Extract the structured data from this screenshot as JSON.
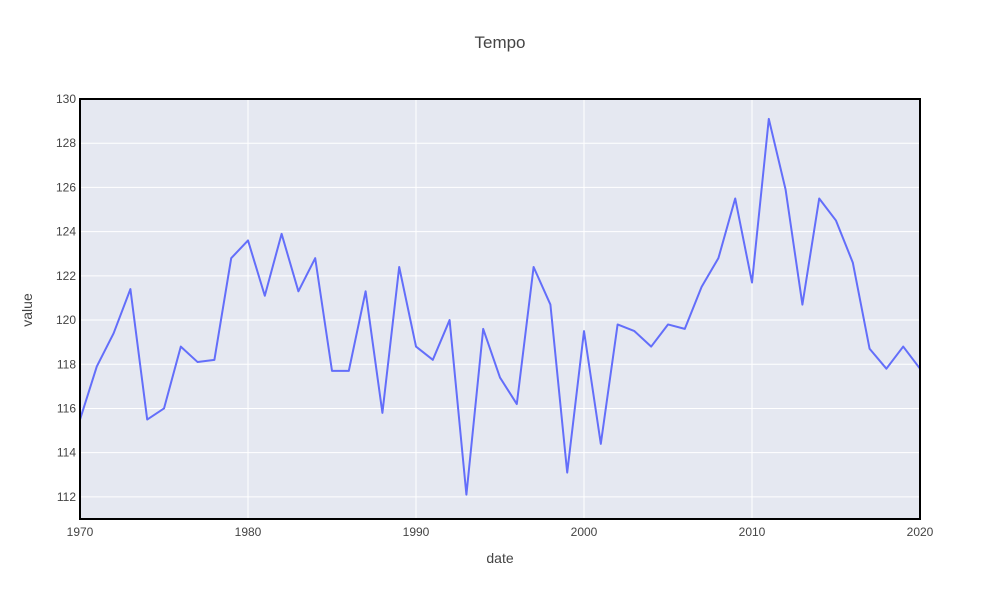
{
  "chart_data": {
    "type": "line",
    "title": "Tempo",
    "xlabel": "date",
    "ylabel": "value",
    "xlim": [
      1970,
      2020
    ],
    "ylim": [
      111,
      130
    ],
    "x_ticks": [
      "1970",
      "1980",
      "1990",
      "2000",
      "2010",
      "2020"
    ],
    "y_ticks": [
      "112",
      "114",
      "116",
      "118",
      "120",
      "122",
      "124",
      "126",
      "128",
      "130"
    ],
    "grid": true,
    "colors": {
      "line": "#636efa",
      "plot_bg": "#e5e8f1",
      "grid": "#ffffff",
      "frame": "#000000"
    },
    "series": [
      {
        "x": [
          1970,
          1971,
          1972,
          1973,
          1974,
          1975,
          1976,
          1977,
          1978,
          1979,
          1980,
          1981,
          1982,
          1983,
          1984,
          1985,
          1986,
          1987,
          1988,
          1989,
          1990,
          1991,
          1992,
          1993,
          1994,
          1995,
          1996,
          1997,
          1998,
          1999,
          2000,
          2001,
          2002,
          2003,
          2004,
          2005,
          2006,
          2007,
          2008,
          2009,
          2010,
          2011,
          2012,
          2013,
          2014,
          2015,
          2016,
          2017,
          2018,
          2019,
          2020
        ],
        "values": [
          115.5,
          117.9,
          119.4,
          121.4,
          115.5,
          116.0,
          118.8,
          118.1,
          118.2,
          122.8,
          123.6,
          121.1,
          123.9,
          121.3,
          122.8,
          117.7,
          117.7,
          121.3,
          115.8,
          122.4,
          118.8,
          118.2,
          120.0,
          112.1,
          119.6,
          117.4,
          116.2,
          122.4,
          120.7,
          113.1,
          119.5,
          114.4,
          119.8,
          119.5,
          118.8,
          119.8,
          119.6,
          121.5,
          122.8,
          125.5,
          121.7,
          129.1,
          125.9,
          120.7,
          125.5,
          124.5,
          122.6,
          118.7,
          117.8,
          118.8,
          117.8
        ]
      }
    ]
  }
}
